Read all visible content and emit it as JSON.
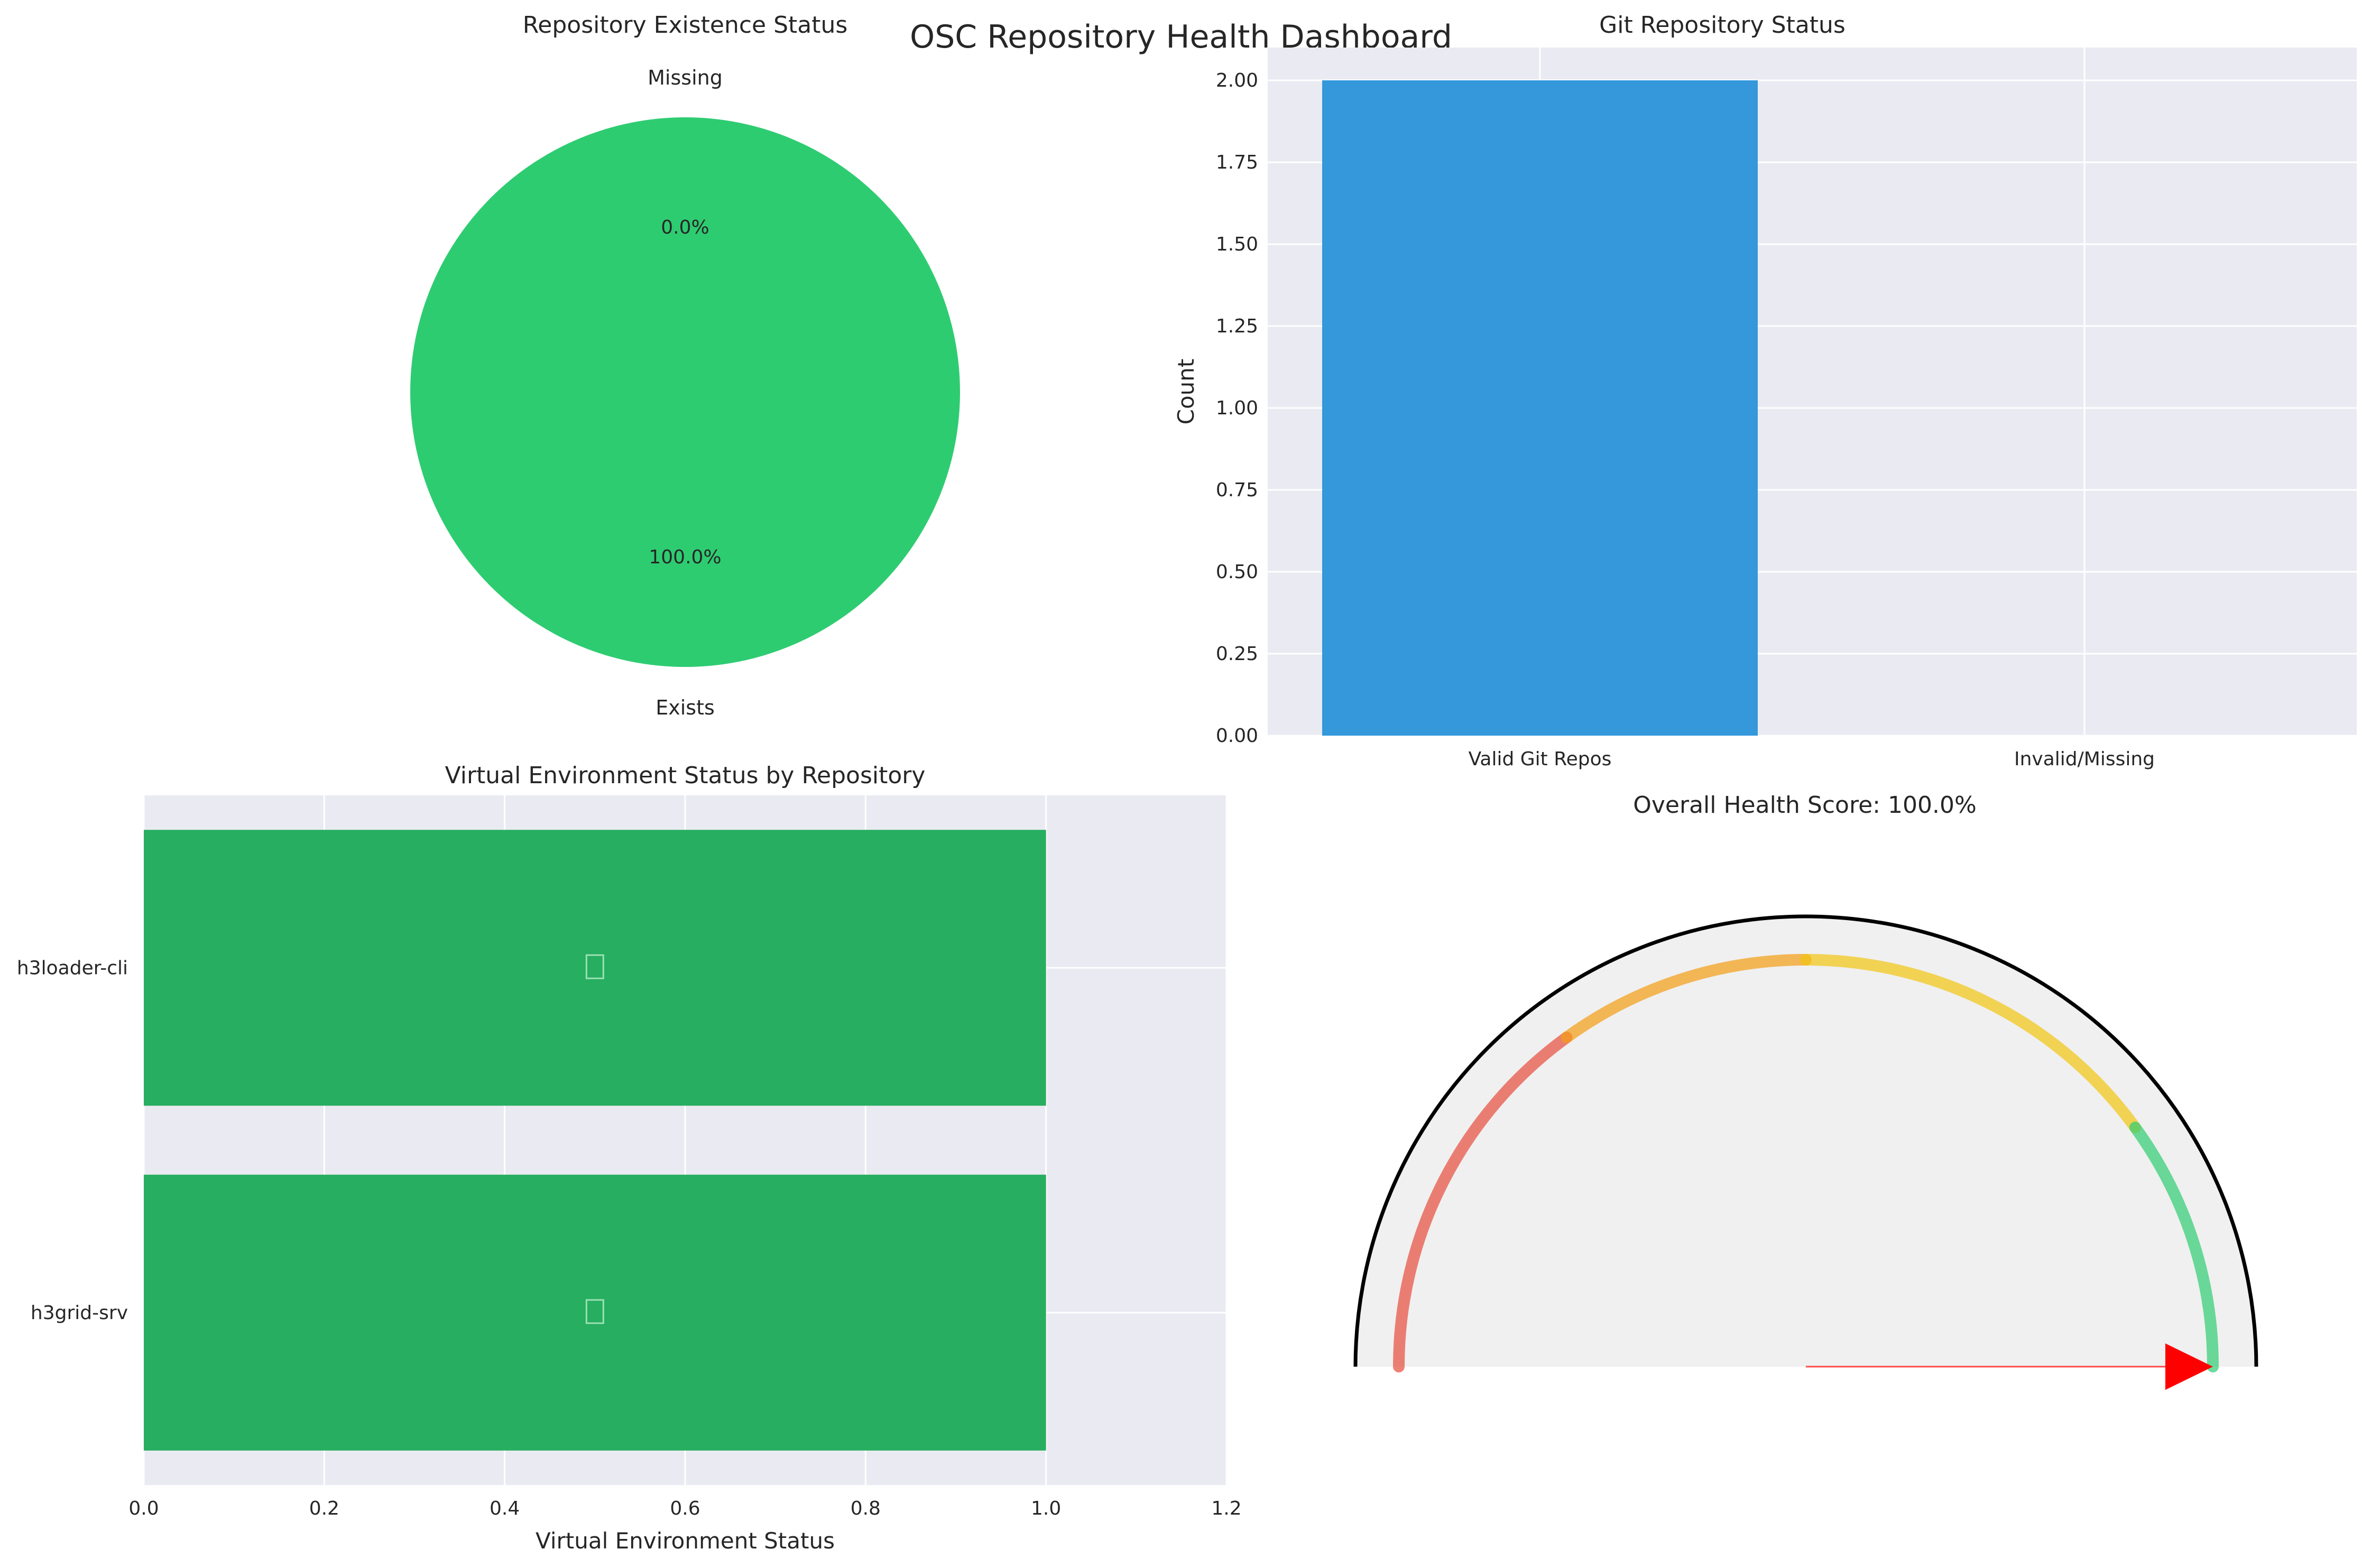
{
  "suptitle": "OSC Repository Health Dashboard",
  "chart_data": [
    {
      "id": "existence",
      "type": "pie",
      "title": "Repository Existence Status",
      "labels": [
        "Exists",
        "Missing"
      ],
      "values": [
        2,
        0
      ],
      "percent_labels": [
        "100.0%",
        "0.0%"
      ],
      "colors": [
        "#2ecc71",
        "#e74c3c"
      ]
    },
    {
      "id": "git",
      "type": "bar",
      "title": "Git Repository Status",
      "categories": [
        "Valid Git Repos",
        "Invalid/Missing"
      ],
      "values": [
        2,
        0
      ],
      "ylabel": "Count",
      "ylim": [
        0,
        2.1
      ],
      "yticks": [
        "0.00",
        "0.25",
        "0.50",
        "0.75",
        "1.00",
        "1.25",
        "1.50",
        "1.75",
        "2.00"
      ],
      "colors": [
        "#3498db",
        "#e74c3c"
      ],
      "grid": true
    },
    {
      "id": "venv",
      "type": "bar",
      "orientation": "horizontal",
      "title": "Virtual Environment Status by Repository",
      "categories": [
        "h3loader-cli",
        "h3grid-srv"
      ],
      "values": [
        1,
        1
      ],
      "xlabel": "Virtual Environment Status",
      "xlim": [
        0,
        1.2
      ],
      "xticks": [
        "0.0",
        "0.2",
        "0.4",
        "0.6",
        "0.8",
        "1.0",
        "1.2"
      ],
      "color": "#27ae60",
      "grid": true
    },
    {
      "id": "health",
      "type": "gauge",
      "title": "Overall Health Score: 100.0%",
      "score_percent": 100.0,
      "zones": [
        {
          "from": 0,
          "to": 30,
          "color": "#e74c3c"
        },
        {
          "from": 30,
          "to": 50,
          "color": "#f39c12"
        },
        {
          "from": 50,
          "to": 80,
          "color": "#f1c40f"
        },
        {
          "from": 80,
          "to": 100,
          "color": "#2ecc71"
        }
      ],
      "needle_color": "#ff0000"
    }
  ]
}
